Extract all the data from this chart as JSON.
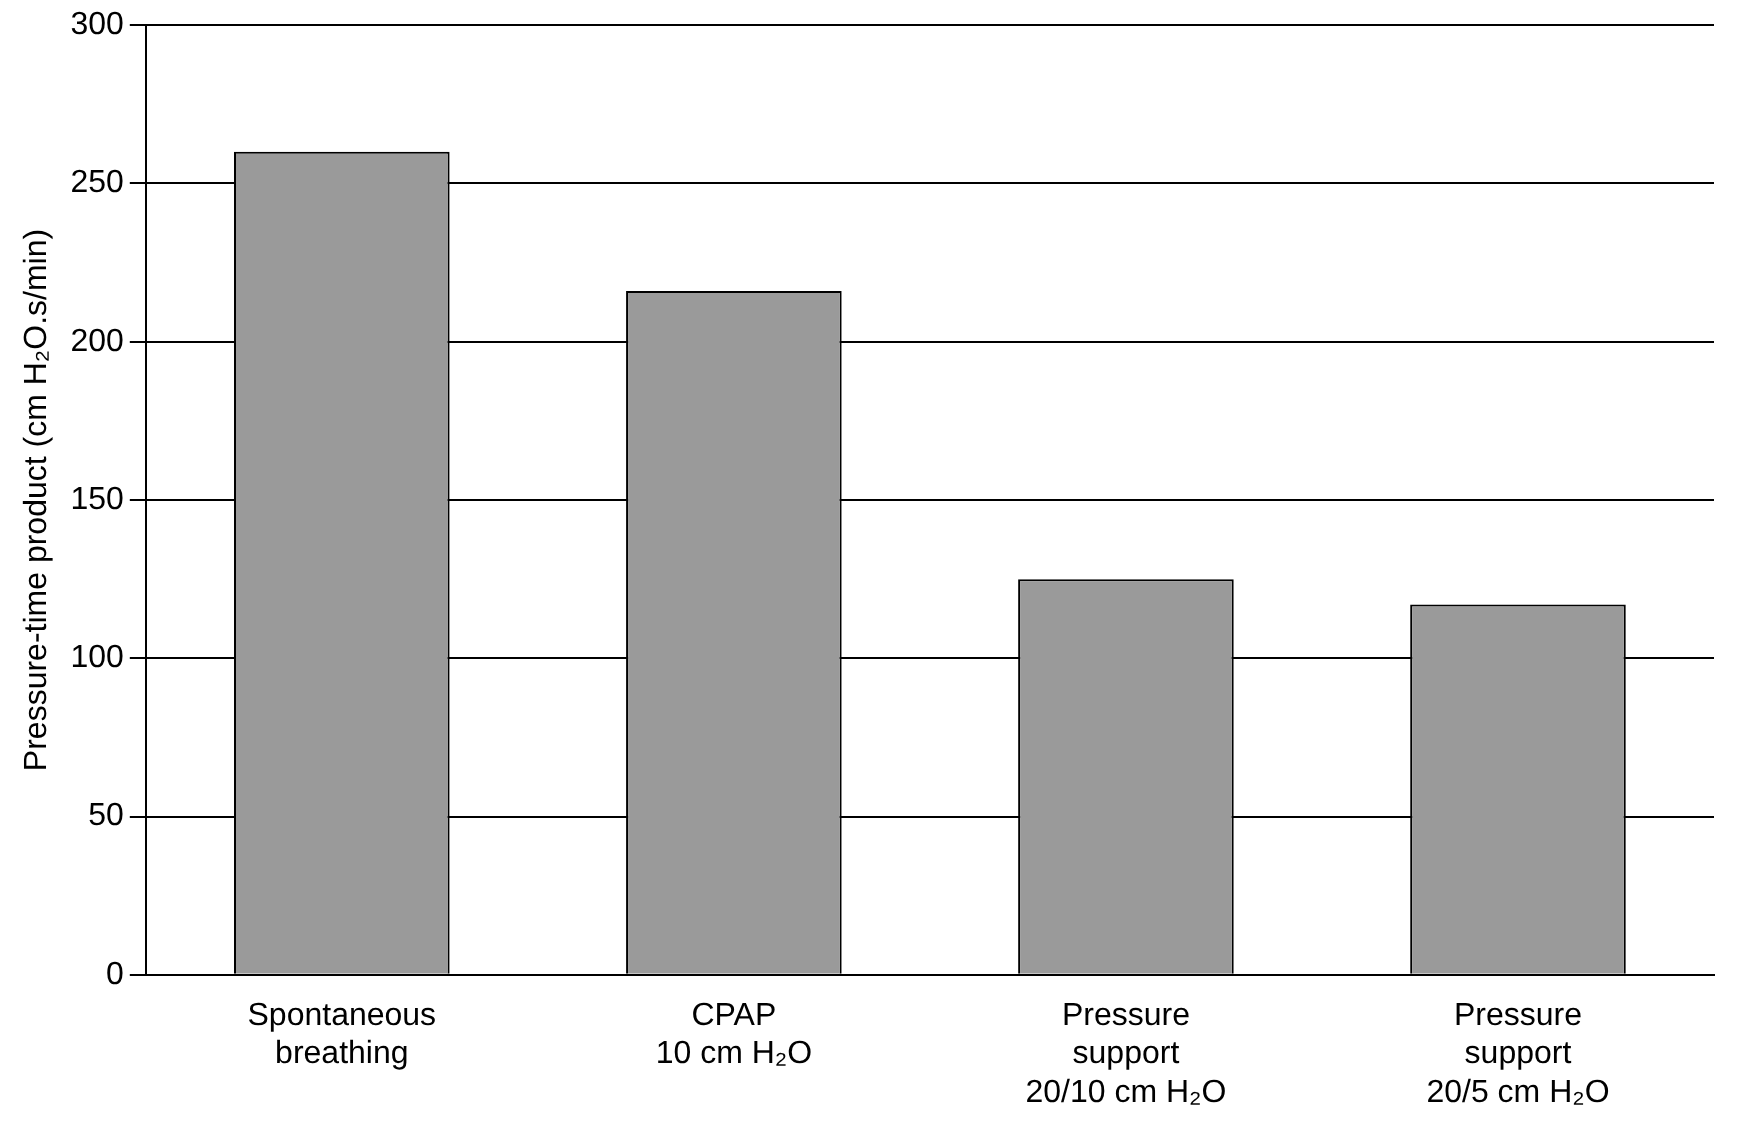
{
  "chart_data": {
    "type": "bar",
    "ylabel": "Pressure-time product (cm H₂O.s/min)",
    "categories": [
      "Spontaneous\nbreathing",
      "CPAP\n10 cm H₂O",
      "Pressure\nsupport\n20/10 cm H₂O",
      "Pressure\nsupport\n20/5 cm H₂O"
    ],
    "values": [
      260,
      216,
      125,
      117
    ],
    "color": "#9a9a9a",
    "ylim": [
      0,
      300
    ],
    "yticks": [
      0,
      50,
      100,
      150,
      200,
      250,
      300
    ],
    "grid": "y",
    "legend": false
  }
}
